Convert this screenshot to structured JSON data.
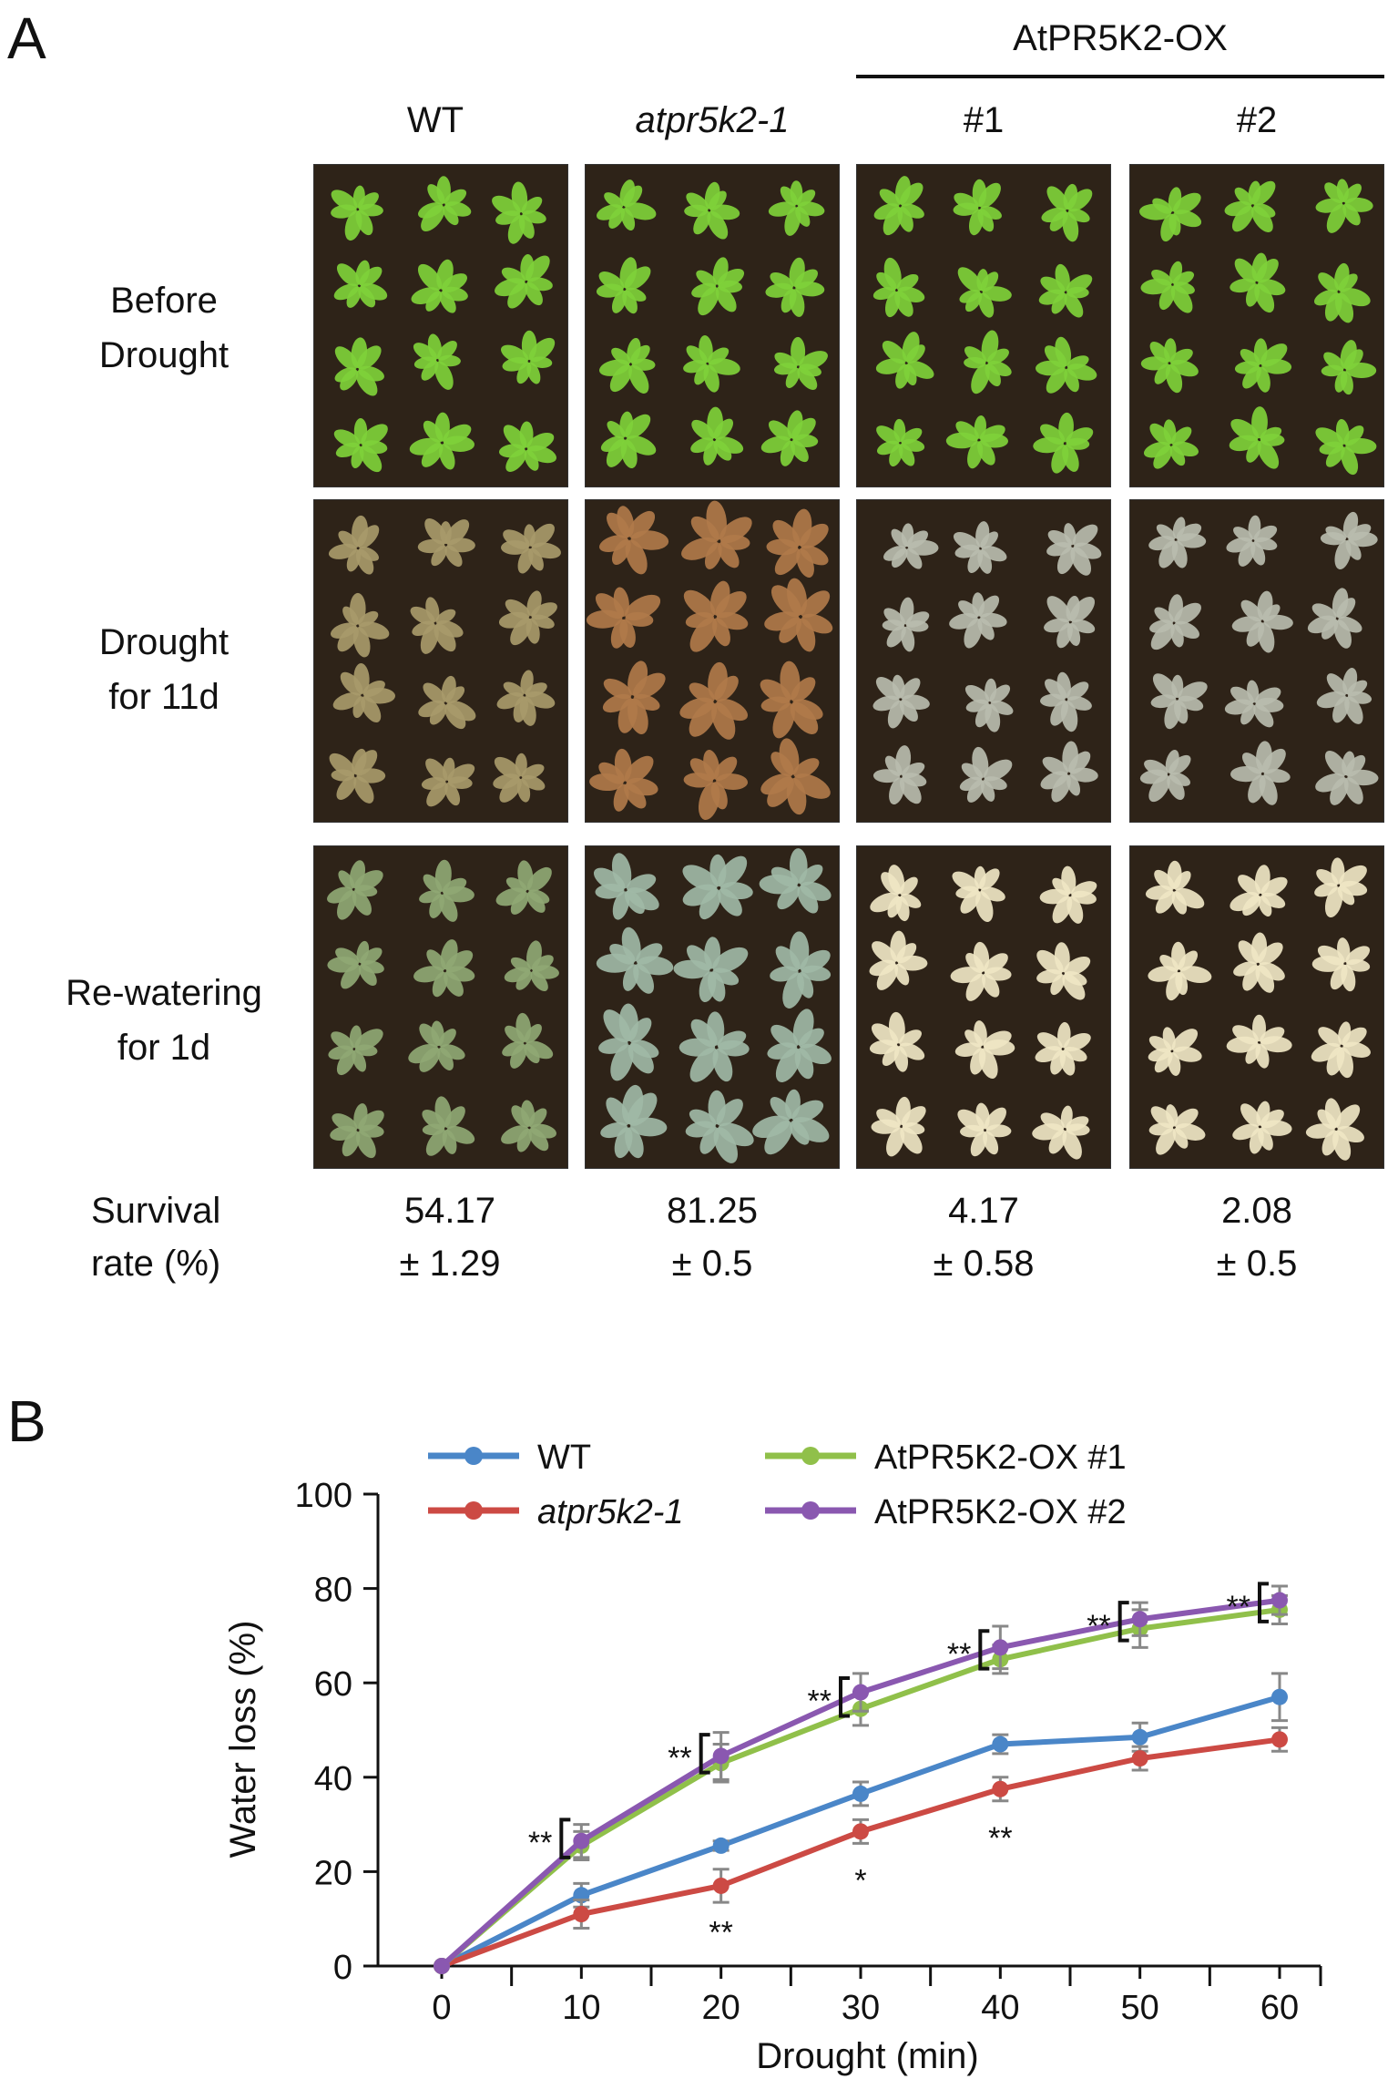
{
  "panel_a": {
    "letter": "A",
    "group_label": "AtPR5K2-OX",
    "columns": [
      {
        "label": "WT",
        "italic": false
      },
      {
        "label": "atpr5k2-1",
        "italic": true
      },
      {
        "label": "#1",
        "italic": false
      },
      {
        "label": "#2",
        "italic": false
      }
    ],
    "rows": [
      {
        "line1": "Before",
        "line2": "Drought"
      },
      {
        "line1": "Drought",
        "line2": "for 11d"
      },
      {
        "line1": "Re-watering",
        "line2": "for 1d"
      }
    ],
    "survival_label": {
      "line1": "Survival",
      "line2": "rate (%)"
    },
    "survival_values": [
      {
        "mean": "54.17",
        "sd": "± 1.29"
      },
      {
        "mean": "81.25",
        "sd": "± 0.5"
      },
      {
        "mean": "4.17",
        "sd": "± 0.58"
      },
      {
        "mean": "2.08",
        "sd": "± 0.5"
      }
    ],
    "colors": {
      "soil": "#2e2318",
      "healthy_leaf": "#7fd13a",
      "wt_drought_leaf": "#a89a6a",
      "mutant_drought_leaf": "#b07a4a",
      "ox_drought_leaf": "#b8bcae",
      "wt_rewater_leaf": "#8fa874",
      "mutant_rewater_leaf": "#9fb8a6",
      "ox_rewater_leaf": "#efe6c4"
    }
  },
  "panel_b": {
    "letter": "B"
  },
  "chart_data": {
    "type": "line",
    "xlabel": "Drought (min)",
    "ylabel": "Water loss (%)",
    "x": [
      0,
      10,
      20,
      30,
      40,
      50,
      60
    ],
    "xlim": [
      0,
      60
    ],
    "ylim": [
      0,
      100
    ],
    "yticks": [
      0,
      20,
      40,
      60,
      80,
      100
    ],
    "grid": false,
    "legend_position": "top",
    "series": [
      {
        "name": "WT",
        "italic": false,
        "color": "#4a86c8",
        "values": [
          0,
          15,
          25.5,
          36.5,
          47,
          48.5,
          57
        ],
        "errors": [
          0,
          2.5,
          1,
          2.5,
          2,
          3,
          5
        ]
      },
      {
        "name": "atpr5k2-1",
        "italic": true,
        "color": "#cc4a44",
        "values": [
          0,
          11,
          17,
          28.5,
          37.5,
          44,
          48
        ],
        "errors": [
          0,
          3,
          3.5,
          2.5,
          2.5,
          2.5,
          2.5
        ]
      },
      {
        "name": "AtPR5K2-OX #1",
        "italic": false,
        "color": "#90c04a",
        "values": [
          0,
          25.5,
          43,
          54.5,
          65,
          71.5,
          75.5
        ],
        "errors": [
          0,
          3,
          4,
          3.5,
          3,
          4,
          3
        ]
      },
      {
        "name": "AtPR5K2-OX #2",
        "italic": false,
        "color": "#8a58b0",
        "values": [
          0,
          26.5,
          44.5,
          58,
          67.5,
          73.5,
          77.5
        ],
        "errors": [
          0,
          3.5,
          5,
          4,
          4.5,
          3.5,
          3
        ]
      }
    ],
    "annotations": [
      {
        "text": "**",
        "x": 10,
        "y": 27,
        "place": "left-bracket"
      },
      {
        "text": "**",
        "x": 20,
        "y": 45,
        "place": "left-bracket"
      },
      {
        "text": "**",
        "x": 30,
        "y": 57,
        "place": "left-bracket"
      },
      {
        "text": "**",
        "x": 40,
        "y": 67,
        "place": "left-bracket"
      },
      {
        "text": "**",
        "x": 50,
        "y": 73,
        "place": "left-bracket"
      },
      {
        "text": "**",
        "x": 60,
        "y": 77,
        "place": "left-bracket"
      },
      {
        "text": "**",
        "x": 20,
        "y": 8,
        "place": "below"
      },
      {
        "text": "*",
        "x": 30,
        "y": 19,
        "place": "below"
      },
      {
        "text": "**",
        "x": 40,
        "y": 28,
        "place": "below"
      }
    ]
  }
}
